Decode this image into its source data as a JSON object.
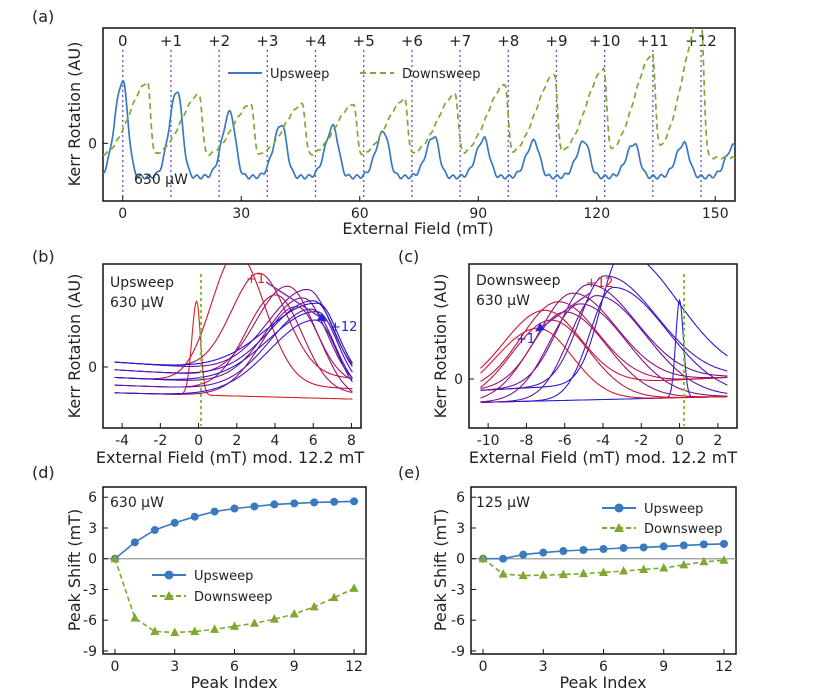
{
  "chart_data": [
    {
      "panel": "(a)",
      "type": "line",
      "xlabel": "External Field (mT)",
      "ylabel": "Kerr Rotation (AU)",
      "xlim": [
        -5,
        155
      ],
      "ylim": [
        -1.2,
        2.4
      ],
      "xticks": [
        0,
        30,
        60,
        90,
        120,
        150
      ],
      "yticks": [
        0
      ],
      "annotation": "630 μW",
      "peak_labels": [
        "0",
        "+1",
        "+2",
        "+3",
        "+4",
        "+5",
        "+6",
        "+7",
        "+8",
        "+9",
        "+10",
        "+11",
        "+12"
      ],
      "peak_markers_mT": [
        0,
        12.2,
        24.4,
        36.6,
        48.8,
        61,
        73.2,
        85.4,
        97.6,
        109.8,
        122,
        134.2,
        146.4
      ],
      "legend": [
        "Upsweep",
        "Downsweep"
      ],
      "series": [
        {
          "name": "Upsweep",
          "color": "#3a78bf",
          "dash": "",
          "peak_x": [
            0,
            13.8,
            27.2,
            40.2,
            53.3,
            66.1,
            78.8,
            91.5,
            104.2,
            116.9,
            129.5,
            142.1,
            154.7
          ],
          "peak_h": [
            2.0,
            1.8,
            1.35,
            1.1,
            1.05,
            0.95,
            0.85,
            0.8,
            0.75,
            0.75,
            0.7,
            0.7,
            0.65
          ],
          "base": -0.7,
          "rise": 2.0,
          "decay": 1.3
        },
        {
          "name": "Downsweep",
          "color": "#7fa833",
          "dash": "6,4",
          "peak_x": [
            6.3,
            19.4,
            32.5,
            45.5,
            58.5,
            71.4,
            84.2,
            96.8,
            109.3,
            121.8,
            134.1,
            146.4
          ],
          "peak_h": [
            1.55,
            1.3,
            1.1,
            1.1,
            1.1,
            1.2,
            1.3,
            1.5,
            1.7,
            1.8,
            2.1,
            2.9
          ],
          "base": -0.3,
          "rise": 4.5,
          "decay": 0.7
        }
      ]
    },
    {
      "panel": "(b)",
      "type": "line",
      "xlabel": "External Field (mT) mod. 12.2 mT",
      "ylabel": "Kerr Rotation (AU)",
      "xlim": [
        -5,
        8.5
      ],
      "xticks": [
        -4,
        -2,
        0,
        2,
        4,
        6,
        8
      ],
      "yticks": [
        0
      ],
      "annotation_lines": [
        "Upsweep",
        "630 μW"
      ],
      "arrow_from": "+1",
      "arrow_to": "+12",
      "curves": 13
    },
    {
      "panel": "(c)",
      "type": "line",
      "xlabel": "External Field (mT) mod. 12.2 mT",
      "ylabel": "Kerr Rotation (AU)",
      "xlim": [
        -11,
        3
      ],
      "xticks": [
        -10,
        -8,
        -6,
        -4,
        -2,
        0,
        2
      ],
      "yticks": [
        0
      ],
      "annotation_lines": [
        "Downsweep",
        "630 μW"
      ],
      "arrow_from": "+12",
      "arrow_to": "+1",
      "curves": 13
    },
    {
      "panel": "(d)",
      "type": "line",
      "xlabel": "Peak Index",
      "ylabel": "Peak Shift (mT)",
      "xlim": [
        -0.6,
        12.6
      ],
      "ylim": [
        -9.3,
        7.0
      ],
      "xticks": [
        0,
        3,
        6,
        9,
        12
      ],
      "yticks": [
        6,
        3,
        0,
        -3,
        -6,
        -9
      ],
      "annotation": "630 μW",
      "x": [
        0,
        1,
        2,
        3,
        4,
        5,
        6,
        7,
        8,
        9,
        10,
        11,
        12
      ],
      "series": [
        {
          "name": "Upsweep",
          "color": "#3a78bf",
          "values": [
            0,
            1.6,
            2.8,
            3.5,
            4.1,
            4.6,
            4.9,
            5.1,
            5.3,
            5.4,
            5.5,
            5.55,
            5.6
          ]
        },
        {
          "name": "Downsweep",
          "color": "#7fa833",
          "values": [
            0,
            -5.8,
            -7.1,
            -7.2,
            -7.1,
            -6.9,
            -6.6,
            -6.3,
            -5.9,
            -5.4,
            -4.7,
            -3.8,
            -2.9
          ]
        }
      ]
    },
    {
      "panel": "(e)",
      "type": "line",
      "xlabel": "Peak Index",
      "ylabel": "Peak Shift (mT)",
      "xlim": [
        -0.6,
        12.6
      ],
      "ylim": [
        -9.3,
        7.0
      ],
      "xticks": [
        0,
        3,
        6,
        9,
        12
      ],
      "yticks": [
        6,
        3,
        0,
        -3,
        -6,
        -9
      ],
      "annotation": "125 μW",
      "x": [
        0,
        1,
        2,
        3,
        4,
        5,
        6,
        7,
        8,
        9,
        10,
        11,
        12
      ],
      "series": [
        {
          "name": "Upsweep",
          "color": "#3a78bf",
          "values": [
            0,
            0,
            0.4,
            0.6,
            0.75,
            0.85,
            0.95,
            1.05,
            1.1,
            1.2,
            1.3,
            1.4,
            1.45
          ]
        },
        {
          "name": "Downsweep",
          "color": "#7fa833",
          "values": [
            0,
            -1.5,
            -1.65,
            -1.6,
            -1.55,
            -1.45,
            -1.35,
            -1.2,
            -1.05,
            -0.9,
            -0.6,
            -0.3,
            -0.15
          ]
        }
      ]
    }
  ]
}
